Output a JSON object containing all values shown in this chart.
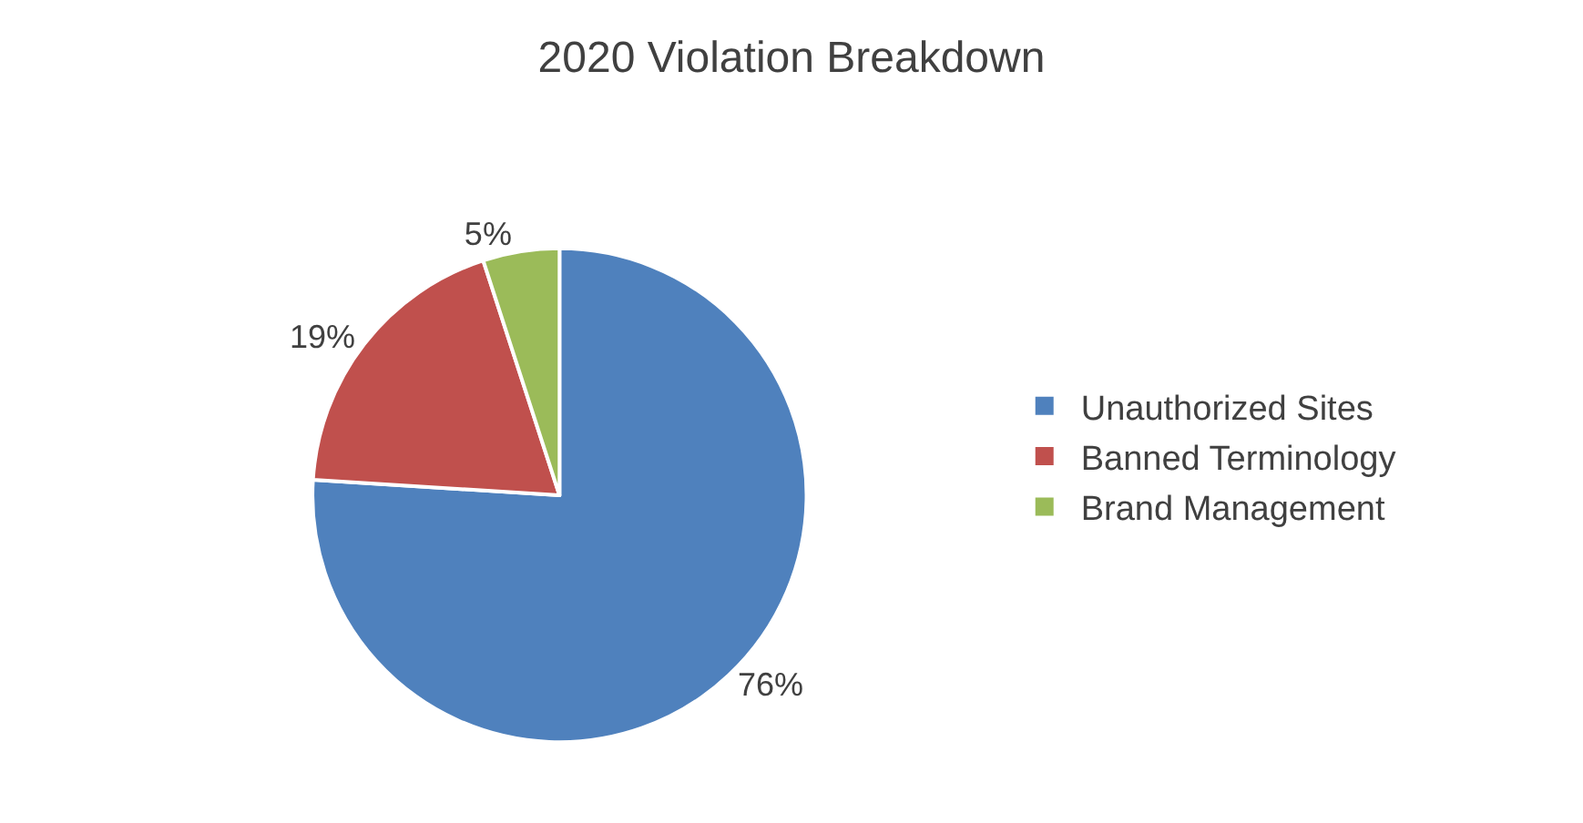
{
  "chart_data": {
    "type": "pie",
    "title": "2020 Violation Breakdown",
    "categories": [
      "Unauthorized Sites",
      "Banned Terminology",
      "Brand Management"
    ],
    "values": [
      76,
      19,
      5
    ],
    "value_labels": [
      "76%",
      "19%",
      "5%"
    ],
    "colors": [
      "#4f81bd",
      "#c0504d",
      "#9bbb59"
    ],
    "legend": "right"
  }
}
